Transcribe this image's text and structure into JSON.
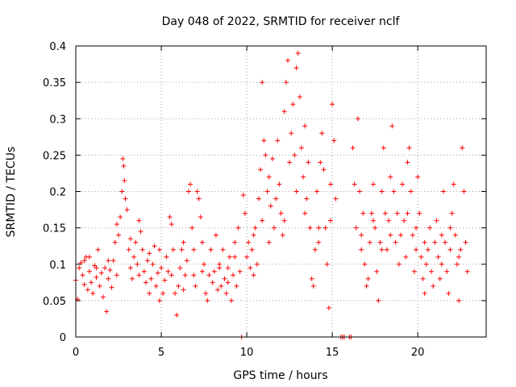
{
  "chart_data": {
    "type": "scatter",
    "title": "Day 048 of 2022, SRMTID for receiver nclf",
    "xlabel": "GPS time / hours",
    "ylabel": "SRMTID / TECUs",
    "xlim": [
      0,
      24
    ],
    "ylim": [
      0,
      0.4
    ],
    "xticks": [
      0,
      5,
      10,
      15,
      20
    ],
    "xtick_labels": [
      "0",
      "5",
      "10",
      "15",
      "20"
    ],
    "yticks": [
      0,
      0.05,
      0.1,
      0.15,
      0.2,
      0.25,
      0.3,
      0.35,
      0.4
    ],
    "ytick_labels": [
      "0",
      "0.05",
      "0.1",
      "0.15",
      "0.2",
      "0.25",
      "0.3",
      "0.35",
      "0.4"
    ],
    "grid": true,
    "marker": "plus",
    "color": "#ff0000",
    "series": [
      {
        "points": [
          [
            0.0,
            0.078
          ],
          [
            0.1,
            0.052
          ],
          [
            0.2,
            0.095
          ],
          [
            0.3,
            0.102
          ],
          [
            0.4,
            0.085
          ],
          [
            0.5,
            0.072
          ],
          [
            0.6,
            0.11
          ],
          [
            0.7,
            0.065
          ],
          [
            0.8,
            0.09
          ],
          [
            0.9,
            0.075
          ],
          [
            1.0,
            0.06
          ],
          [
            1.1,
            0.098
          ],
          [
            1.2,
            0.082
          ],
          [
            1.3,
            0.12
          ],
          [
            1.4,
            0.07
          ],
          [
            1.5,
            0.088
          ],
          [
            1.6,
            0.055
          ],
          [
            1.7,
            0.095
          ],
          [
            1.8,
            0.035
          ],
          [
            1.9,
            0.08
          ],
          [
            2.0,
            0.092
          ],
          [
            2.1,
            0.068
          ],
          [
            2.2,
            0.105
          ],
          [
            2.3,
            0.13
          ],
          [
            2.4,
            0.155
          ],
          [
            2.5,
            0.14
          ],
          [
            2.6,
            0.165
          ],
          [
            2.7,
            0.2
          ],
          [
            2.75,
            0.245
          ],
          [
            2.8,
            0.235
          ],
          [
            2.85,
            0.215
          ],
          [
            2.9,
            0.19
          ],
          [
            3.0,
            0.175
          ],
          [
            3.1,
            0.12
          ],
          [
            3.2,
            0.095
          ],
          [
            3.3,
            0.08
          ],
          [
            3.4,
            0.11
          ],
          [
            3.5,
            0.13
          ],
          [
            3.6,
            0.1
          ],
          [
            3.7,
            0.085
          ],
          [
            3.8,
            0.145
          ],
          [
            3.9,
            0.12
          ],
          [
            4.0,
            0.09
          ],
          [
            4.1,
            0.075
          ],
          [
            4.2,
            0.105
          ],
          [
            4.3,
            0.06
          ],
          [
            4.4,
            0.08
          ],
          [
            4.5,
            0.1
          ],
          [
            4.6,
            0.125
          ],
          [
            4.7,
            0.07
          ],
          [
            4.8,
            0.088
          ],
          [
            4.9,
            0.05
          ],
          [
            5.0,
            0.095
          ],
          [
            5.1,
            0.06
          ],
          [
            5.2,
            0.078
          ],
          [
            5.3,
            0.11
          ],
          [
            5.4,
            0.09
          ],
          [
            5.5,
            0.165
          ],
          [
            5.6,
            0.155
          ],
          [
            5.7,
            0.12
          ],
          [
            5.8,
            0.06
          ],
          [
            5.9,
            0.03
          ],
          [
            6.0,
            0.07
          ],
          [
            6.1,
            0.095
          ],
          [
            6.2,
            0.12
          ],
          [
            6.3,
            0.13
          ],
          [
            6.4,
            0.085
          ],
          [
            6.5,
            0.105
          ],
          [
            6.6,
            0.2
          ],
          [
            6.7,
            0.21
          ],
          [
            6.8,
            0.15
          ],
          [
            6.9,
            0.085
          ],
          [
            7.0,
            0.07
          ],
          [
            7.1,
            0.2
          ],
          [
            7.2,
            0.19
          ],
          [
            7.3,
            0.165
          ],
          [
            7.4,
            0.09
          ],
          [
            7.5,
            0.1
          ],
          [
            7.6,
            0.06
          ],
          [
            7.7,
            0.05
          ],
          [
            7.8,
            0.085
          ],
          [
            7.9,
            0.12
          ],
          [
            8.0,
            0.075
          ],
          [
            8.1,
            0.09
          ],
          [
            8.2,
            0.14
          ],
          [
            8.3,
            0.065
          ],
          [
            8.4,
            0.095
          ],
          [
            8.5,
            0.07
          ],
          [
            8.6,
            0.12
          ],
          [
            8.7,
            0.08
          ],
          [
            8.8,
            0.06
          ],
          [
            8.9,
            0.095
          ],
          [
            9.0,
            0.11
          ],
          [
            9.1,
            0.05
          ],
          [
            9.2,
            0.085
          ],
          [
            9.3,
            0.13
          ],
          [
            9.4,
            0.07
          ],
          [
            9.5,
            0.15
          ],
          [
            9.6,
            0.09
          ],
          [
            9.7,
            0.0
          ],
          [
            9.8,
            0.195
          ],
          [
            9.9,
            0.17
          ],
          [
            10.0,
            0.11
          ],
          [
            10.1,
            0.13
          ],
          [
            10.2,
            0.095
          ],
          [
            10.3,
            0.12
          ],
          [
            10.4,
            0.085
          ],
          [
            10.5,
            0.15
          ],
          [
            10.6,
            0.1
          ],
          [
            10.7,
            0.19
          ],
          [
            10.8,
            0.23
          ],
          [
            10.9,
            0.35
          ],
          [
            11.0,
            0.27
          ],
          [
            11.1,
            0.25
          ],
          [
            11.2,
            0.2
          ],
          [
            11.3,
            0.22
          ],
          [
            11.4,
            0.18
          ],
          [
            11.5,
            0.245
          ],
          [
            11.6,
            0.15
          ],
          [
            11.7,
            0.19
          ],
          [
            11.8,
            0.27
          ],
          [
            11.9,
            0.21
          ],
          [
            12.0,
            0.17
          ],
          [
            12.1,
            0.14
          ],
          [
            12.2,
            0.31
          ],
          [
            12.3,
            0.35
          ],
          [
            12.4,
            0.38
          ],
          [
            12.5,
            0.24
          ],
          [
            12.6,
            0.28
          ],
          [
            12.7,
            0.32
          ],
          [
            12.8,
            0.25
          ],
          [
            12.9,
            0.37
          ],
          [
            13.0,
            0.39
          ],
          [
            13.1,
            0.33
          ],
          [
            13.2,
            0.26
          ],
          [
            13.3,
            0.22
          ],
          [
            13.4,
            0.29
          ],
          [
            13.5,
            0.19
          ],
          [
            13.6,
            0.24
          ],
          [
            13.7,
            0.15
          ],
          [
            13.8,
            0.08
          ],
          [
            13.9,
            0.07
          ],
          [
            14.0,
            0.12
          ],
          [
            14.1,
            0.2
          ],
          [
            14.2,
            0.15
          ],
          [
            14.3,
            0.24
          ],
          [
            14.4,
            0.28
          ],
          [
            14.5,
            0.23
          ],
          [
            14.6,
            0.15
          ],
          [
            14.7,
            0.1
          ],
          [
            14.8,
            0.04
          ],
          [
            14.9,
            0.21
          ],
          [
            15.0,
            0.32
          ],
          [
            15.1,
            0.27
          ],
          [
            15.2,
            0.19
          ],
          [
            15.5,
            0.0
          ],
          [
            15.6,
            0.0
          ],
          [
            15.7,
            0.0
          ],
          [
            16.0,
            0.0
          ],
          [
            16.1,
            0.0
          ],
          [
            16.2,
            0.26
          ],
          [
            16.3,
            0.21
          ],
          [
            16.4,
            0.15
          ],
          [
            16.5,
            0.3
          ],
          [
            16.6,
            0.2
          ],
          [
            16.7,
            0.12
          ],
          [
            16.8,
            0.17
          ],
          [
            16.9,
            0.1
          ],
          [
            17.0,
            0.07
          ],
          [
            17.1,
            0.08
          ],
          [
            17.2,
            0.13
          ],
          [
            17.3,
            0.17
          ],
          [
            17.4,
            0.21
          ],
          [
            17.5,
            0.15
          ],
          [
            17.6,
            0.09
          ],
          [
            17.7,
            0.05
          ],
          [
            17.8,
            0.13
          ],
          [
            17.9,
            0.2
          ],
          [
            18.0,
            0.26
          ],
          [
            18.1,
            0.17
          ],
          [
            18.2,
            0.12
          ],
          [
            18.3,
            0.16
          ],
          [
            18.4,
            0.22
          ],
          [
            18.5,
            0.29
          ],
          [
            18.6,
            0.2
          ],
          [
            18.7,
            0.13
          ],
          [
            18.8,
            0.17
          ],
          [
            18.9,
            0.1
          ],
          [
            19.0,
            0.14
          ],
          [
            19.1,
            0.21
          ],
          [
            19.2,
            0.16
          ],
          [
            19.3,
            0.11
          ],
          [
            19.4,
            0.24
          ],
          [
            19.5,
            0.26
          ],
          [
            19.6,
            0.2
          ],
          [
            19.7,
            0.14
          ],
          [
            19.8,
            0.09
          ],
          [
            19.9,
            0.15
          ],
          [
            20.0,
            0.22
          ],
          [
            20.1,
            0.17
          ],
          [
            20.2,
            0.11
          ],
          [
            20.3,
            0.08
          ],
          [
            20.4,
            0.06
          ],
          [
            20.5,
            0.1
          ],
          [
            20.6,
            0.12
          ],
          [
            20.7,
            0.15
          ],
          [
            20.8,
            0.09
          ],
          [
            20.9,
            0.07
          ],
          [
            21.0,
            0.13
          ],
          [
            21.1,
            0.16
          ],
          [
            21.2,
            0.11
          ],
          [
            21.3,
            0.08
          ],
          [
            21.4,
            0.14
          ],
          [
            21.5,
            0.2
          ],
          [
            21.6,
            0.13
          ],
          [
            21.7,
            0.09
          ],
          [
            21.8,
            0.06
          ],
          [
            21.9,
            0.12
          ],
          [
            22.0,
            0.17
          ],
          [
            22.1,
            0.21
          ],
          [
            22.2,
            0.14
          ],
          [
            22.3,
            0.1
          ],
          [
            22.4,
            0.05
          ],
          [
            22.5,
            0.12
          ],
          [
            22.6,
            0.26
          ],
          [
            22.7,
            0.2
          ],
          [
            22.8,
            0.13
          ],
          [
            22.9,
            0.09
          ],
          [
            0.5,
            0.105
          ],
          [
            1.2,
            0.095
          ],
          [
            2.4,
            0.085
          ],
          [
            3.2,
            0.135
          ],
          [
            4.3,
            0.115
          ],
          [
            5.6,
            0.085
          ],
          [
            6.3,
            0.065
          ],
          [
            7.4,
            0.13
          ],
          [
            8.4,
            0.1
          ],
          [
            9.3,
            0.11
          ],
          [
            10.4,
            0.14
          ],
          [
            11.3,
            0.13
          ],
          [
            12.2,
            0.16
          ],
          [
            13.4,
            0.17
          ],
          [
            14.2,
            0.13
          ],
          [
            16.7,
            0.14
          ],
          [
            17.4,
            0.16
          ],
          [
            18.4,
            0.14
          ],
          [
            19.4,
            0.17
          ],
          [
            20.4,
            0.13
          ],
          [
            21.4,
            0.1
          ],
          [
            22.4,
            0.11
          ],
          [
            0.8,
            0.11
          ],
          [
            1.9,
            0.105
          ],
          [
            3.7,
            0.16
          ],
          [
            4.9,
            0.12
          ],
          [
            6.9,
            0.12
          ],
          [
            8.9,
            0.075
          ],
          [
            10.9,
            0.16
          ],
          [
            12.9,
            0.2
          ],
          [
            14.9,
            0.16
          ],
          [
            17.9,
            0.12
          ],
          [
            19.9,
            0.12
          ],
          [
            21.9,
            0.15
          ]
        ]
      }
    ]
  }
}
